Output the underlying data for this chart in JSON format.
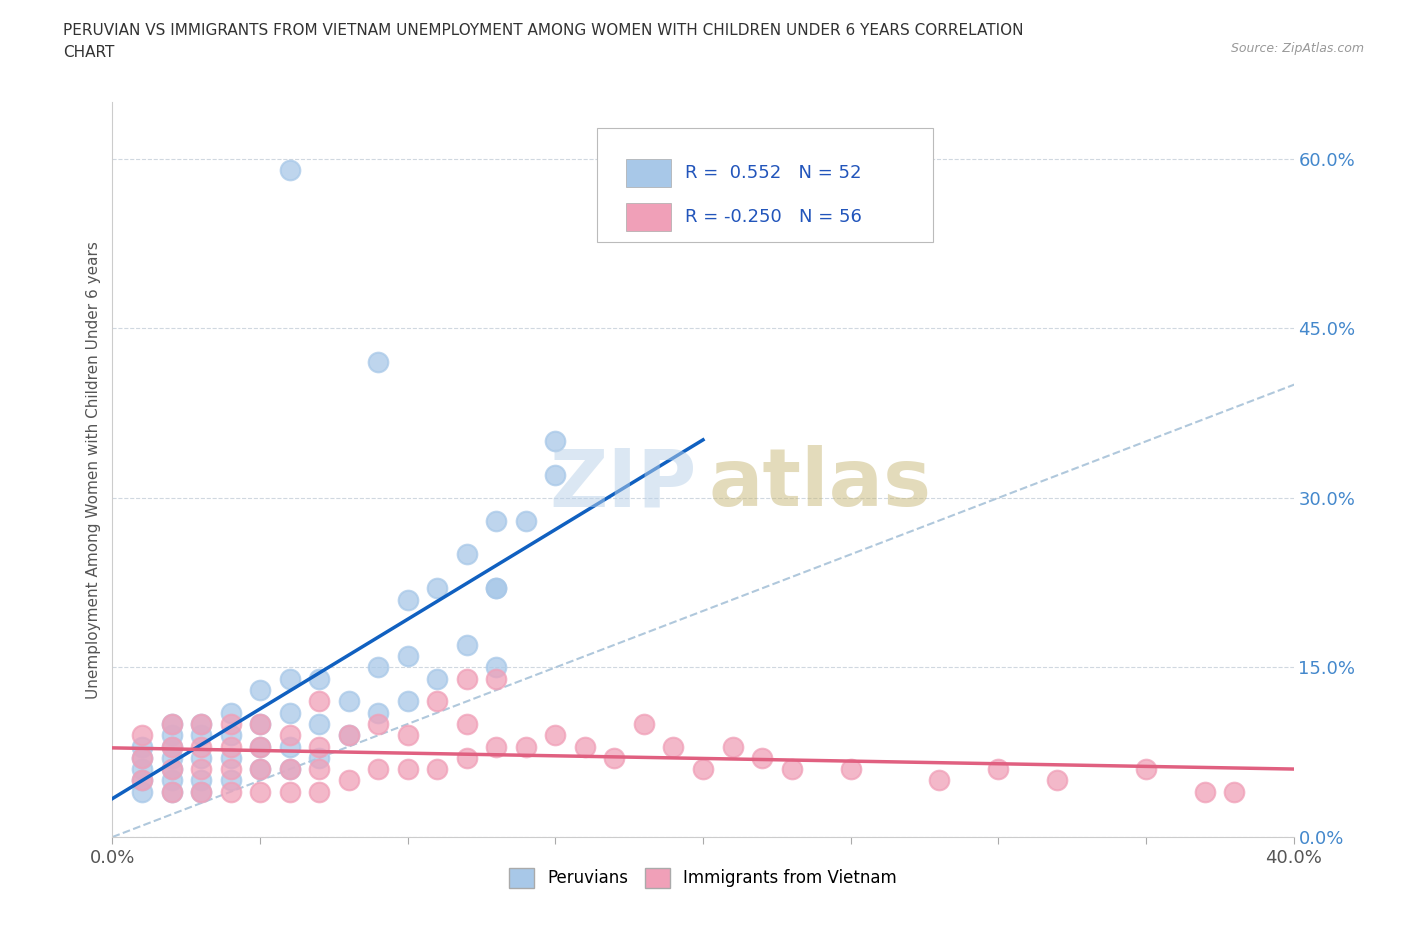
{
  "title_line1": "PERUVIAN VS IMMIGRANTS FROM VIETNAM UNEMPLOYMENT AMONG WOMEN WITH CHILDREN UNDER 6 YEARS CORRELATION",
  "title_line2": "CHART",
  "source_text": "Source: ZipAtlas.com",
  "ylabel": "Unemployment Among Women with Children Under 6 years",
  "xlim": [
    0.0,
    0.4
  ],
  "ylim": [
    0.0,
    0.65
  ],
  "peruvian_color": "#a8c8e8",
  "vietnam_color": "#f0a0b8",
  "peruvian_line_color": "#1060c0",
  "vietnam_line_color": "#e06080",
  "diagonal_color": "#b0c8dc",
  "watermark_zip_color": "#b8d0e8",
  "watermark_atlas_color": "#c8b878",
  "background_color": "#ffffff",
  "grid_color": "#d0d8e0",
  "right_tick_color": "#4488cc",
  "peruvian_R": 0.552,
  "peruvian_N": 52,
  "vietnam_R": -0.25,
  "vietnam_N": 56,
  "peru_x": [
    0.01,
    0.01,
    0.01,
    0.01,
    0.01,
    0.02,
    0.02,
    0.02,
    0.02,
    0.02,
    0.02,
    0.02,
    0.03,
    0.03,
    0.03,
    0.03,
    0.03,
    0.04,
    0.04,
    0.04,
    0.04,
    0.05,
    0.05,
    0.05,
    0.05,
    0.06,
    0.06,
    0.06,
    0.06,
    0.07,
    0.07,
    0.07,
    0.08,
    0.08,
    0.09,
    0.09,
    0.1,
    0.1,
    0.1,
    0.11,
    0.11,
    0.12,
    0.12,
    0.13,
    0.13,
    0.14,
    0.15,
    0.15,
    0.06,
    0.09,
    0.13,
    0.13
  ],
  "peru_y": [
    0.04,
    0.05,
    0.06,
    0.07,
    0.08,
    0.04,
    0.05,
    0.06,
    0.07,
    0.08,
    0.09,
    0.1,
    0.04,
    0.05,
    0.07,
    0.09,
    0.1,
    0.05,
    0.07,
    0.09,
    0.11,
    0.06,
    0.08,
    0.1,
    0.13,
    0.06,
    0.08,
    0.11,
    0.14,
    0.07,
    0.1,
    0.14,
    0.09,
    0.12,
    0.11,
    0.15,
    0.12,
    0.16,
    0.21,
    0.14,
    0.22,
    0.17,
    0.25,
    0.22,
    0.28,
    0.28,
    0.32,
    0.35,
    0.59,
    0.42,
    0.22,
    0.15
  ],
  "viet_x": [
    0.01,
    0.01,
    0.01,
    0.02,
    0.02,
    0.02,
    0.02,
    0.03,
    0.03,
    0.03,
    0.03,
    0.04,
    0.04,
    0.04,
    0.04,
    0.05,
    0.05,
    0.05,
    0.05,
    0.06,
    0.06,
    0.06,
    0.07,
    0.07,
    0.07,
    0.07,
    0.08,
    0.08,
    0.09,
    0.09,
    0.1,
    0.1,
    0.11,
    0.11,
    0.12,
    0.12,
    0.12,
    0.13,
    0.13,
    0.14,
    0.15,
    0.16,
    0.17,
    0.18,
    0.19,
    0.2,
    0.21,
    0.22,
    0.23,
    0.25,
    0.28,
    0.3,
    0.32,
    0.35,
    0.37,
    0.38
  ],
  "viet_y": [
    0.05,
    0.07,
    0.09,
    0.04,
    0.06,
    0.08,
    0.1,
    0.04,
    0.06,
    0.08,
    0.1,
    0.04,
    0.06,
    0.08,
    0.1,
    0.04,
    0.06,
    0.08,
    0.1,
    0.04,
    0.06,
    0.09,
    0.04,
    0.06,
    0.08,
    0.12,
    0.05,
    0.09,
    0.06,
    0.1,
    0.06,
    0.09,
    0.06,
    0.12,
    0.07,
    0.1,
    0.14,
    0.08,
    0.14,
    0.08,
    0.09,
    0.08,
    0.07,
    0.1,
    0.08,
    0.06,
    0.08,
    0.07,
    0.06,
    0.06,
    0.05,
    0.06,
    0.05,
    0.06,
    0.04,
    0.04
  ]
}
